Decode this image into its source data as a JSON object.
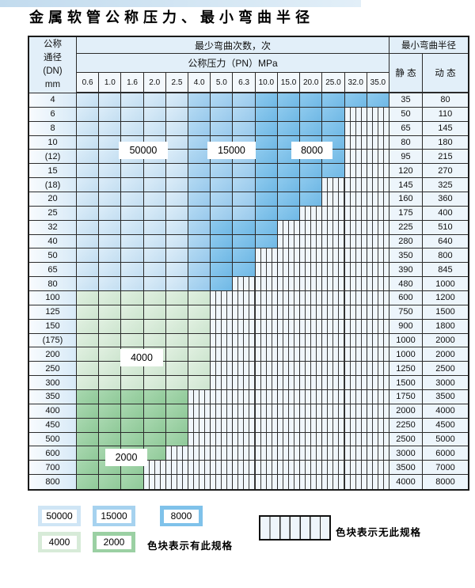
{
  "title": "金属软管公称压力、最小弯曲半径",
  "table": {
    "corner": [
      "公称",
      "通径",
      "(DN)",
      "mm"
    ],
    "headers": {
      "bend_cycles": "最少弯曲次数，次",
      "pressure": "公称压力（PN）MPa",
      "min_bend_radius": "最小弯曲半径",
      "static": "静 态",
      "dynamic": "动 态"
    },
    "pressure_ticks": [
      "0.6",
      "1.0",
      "1.6",
      "2.0",
      "2.5",
      "4.0",
      "5.0",
      "6.3",
      "10.0",
      "15.0",
      "20.0",
      "25.0",
      "32.0",
      "35.0"
    ],
    "cell_code_meaning": {
      "b1": "50000次",
      "b2": "15000次",
      "b3": "8000次",
      "g1": "4000次",
      "g2": "2000次",
      "x": "无此规格"
    },
    "rows": [
      {
        "dn": "4",
        "static": "35",
        "dynamic": "80",
        "cells": [
          "b1",
          "b1",
          "b1",
          "b1",
          "b1",
          "b2",
          "b2",
          "b2",
          "b3",
          "b3",
          "b3",
          "b3",
          "b3",
          "b3"
        ]
      },
      {
        "dn": "6",
        "static": "50",
        "dynamic": "110",
        "cells": [
          "b1",
          "b1",
          "b1",
          "b1",
          "b1",
          "b2",
          "b2",
          "b2",
          "b3",
          "b3",
          "b3",
          "b3",
          "x",
          "x"
        ]
      },
      {
        "dn": "8",
        "static": "65",
        "dynamic": "145",
        "cells": [
          "b1",
          "b1",
          "b1",
          "b1",
          "b1",
          "b2",
          "b2",
          "b2",
          "b3",
          "b3",
          "b3",
          "b3",
          "x",
          "x"
        ]
      },
      {
        "dn": "10",
        "static": "80",
        "dynamic": "180",
        "cells": [
          "b1",
          "b1",
          "b1",
          "b1",
          "b1",
          "b2",
          "b2",
          "b2",
          "b3",
          "b3",
          "b3",
          "b3",
          "x",
          "x"
        ]
      },
      {
        "dn": "(12)",
        "static": "95",
        "dynamic": "215",
        "cells": [
          "b1",
          "b1",
          "b1",
          "b1",
          "b1",
          "b2",
          "b2",
          "b2",
          "b3",
          "b3",
          "b3",
          "b3",
          "x",
          "x"
        ]
      },
      {
        "dn": "15",
        "static": "120",
        "dynamic": "270",
        "cells": [
          "b1",
          "b1",
          "b1",
          "b1",
          "b1",
          "b2",
          "b2",
          "b2",
          "b3",
          "b3",
          "b3",
          "b3",
          "x",
          "x"
        ]
      },
      {
        "dn": "(18)",
        "static": "145",
        "dynamic": "325",
        "cells": [
          "b1",
          "b1",
          "b1",
          "b1",
          "b1",
          "b2",
          "b2",
          "b2",
          "b3",
          "b3",
          "b3",
          "x",
          "x",
          "x"
        ]
      },
      {
        "dn": "20",
        "static": "160",
        "dynamic": "360",
        "cells": [
          "b1",
          "b1",
          "b1",
          "b1",
          "b1",
          "b2",
          "b2",
          "b2",
          "b3",
          "b3",
          "b3",
          "x",
          "x",
          "x"
        ]
      },
      {
        "dn": "25",
        "static": "175",
        "dynamic": "400",
        "cells": [
          "b1",
          "b1",
          "b1",
          "b1",
          "b1",
          "b2",
          "b2",
          "b2",
          "b3",
          "b3",
          "x",
          "x",
          "x",
          "x"
        ]
      },
      {
        "dn": "32",
        "static": "225",
        "dynamic": "510",
        "cells": [
          "b1",
          "b1",
          "b1",
          "b1",
          "b1",
          "b2",
          "b3",
          "b3",
          "b3",
          "x",
          "x",
          "x",
          "x",
          "x"
        ]
      },
      {
        "dn": "40",
        "static": "280",
        "dynamic": "640",
        "cells": [
          "b1",
          "b1",
          "b1",
          "b1",
          "b1",
          "b2",
          "b3",
          "b3",
          "b3",
          "x",
          "x",
          "x",
          "x",
          "x"
        ]
      },
      {
        "dn": "50",
        "static": "350",
        "dynamic": "800",
        "cells": [
          "b1",
          "b1",
          "b1",
          "b1",
          "b1",
          "b2",
          "b3",
          "b3",
          "x",
          "x",
          "x",
          "x",
          "x",
          "x"
        ]
      },
      {
        "dn": "65",
        "static": "390",
        "dynamic": "845",
        "cells": [
          "b1",
          "b1",
          "b1",
          "b1",
          "b1",
          "b2",
          "b3",
          "b3",
          "x",
          "x",
          "x",
          "x",
          "x",
          "x"
        ]
      },
      {
        "dn": "80",
        "static": "480",
        "dynamic": "1000",
        "cells": [
          "b1",
          "b1",
          "b1",
          "b1",
          "b1",
          "b2",
          "b3",
          "x",
          "x",
          "x",
          "x",
          "x",
          "x",
          "x"
        ]
      },
      {
        "dn": "100",
        "static": "600",
        "dynamic": "1200",
        "cells": [
          "g1",
          "g1",
          "g1",
          "g1",
          "g1",
          "g1",
          "x",
          "x",
          "x",
          "x",
          "x",
          "x",
          "x",
          "x"
        ]
      },
      {
        "dn": "125",
        "static": "750",
        "dynamic": "1500",
        "cells": [
          "g1",
          "g1",
          "g1",
          "g1",
          "g1",
          "g1",
          "x",
          "x",
          "x",
          "x",
          "x",
          "x",
          "x",
          "x"
        ]
      },
      {
        "dn": "150",
        "static": "900",
        "dynamic": "1800",
        "cells": [
          "g1",
          "g1",
          "g1",
          "g1",
          "g1",
          "g1",
          "x",
          "x",
          "x",
          "x",
          "x",
          "x",
          "x",
          "x"
        ]
      },
      {
        "dn": "(175)",
        "static": "1000",
        "dynamic": "2000",
        "cells": [
          "g1",
          "g1",
          "g1",
          "g1",
          "g1",
          "g1",
          "x",
          "x",
          "x",
          "x",
          "x",
          "x",
          "x",
          "x"
        ]
      },
      {
        "dn": "200",
        "static": "1000",
        "dynamic": "2000",
        "cells": [
          "g1",
          "g1",
          "g1",
          "g1",
          "g1",
          "g1",
          "x",
          "x",
          "x",
          "x",
          "x",
          "x",
          "x",
          "x"
        ]
      },
      {
        "dn": "250",
        "static": "1250",
        "dynamic": "2500",
        "cells": [
          "g1",
          "g1",
          "g1",
          "g1",
          "g1",
          "g1",
          "x",
          "x",
          "x",
          "x",
          "x",
          "x",
          "x",
          "x"
        ]
      },
      {
        "dn": "300",
        "static": "1500",
        "dynamic": "3000",
        "cells": [
          "g1",
          "g1",
          "g1",
          "g1",
          "g1",
          "g1",
          "x",
          "x",
          "x",
          "x",
          "x",
          "x",
          "x",
          "x"
        ]
      },
      {
        "dn": "350",
        "static": "1750",
        "dynamic": "3500",
        "cells": [
          "g2",
          "g2",
          "g2",
          "g2",
          "g2",
          "x",
          "x",
          "x",
          "x",
          "x",
          "x",
          "x",
          "x",
          "x"
        ]
      },
      {
        "dn": "400",
        "static": "2000",
        "dynamic": "4000",
        "cells": [
          "g2",
          "g2",
          "g2",
          "g2",
          "g2",
          "x",
          "x",
          "x",
          "x",
          "x",
          "x",
          "x",
          "x",
          "x"
        ]
      },
      {
        "dn": "450",
        "static": "2250",
        "dynamic": "4500",
        "cells": [
          "g2",
          "g2",
          "g2",
          "g2",
          "g2",
          "x",
          "x",
          "x",
          "x",
          "x",
          "x",
          "x",
          "x",
          "x"
        ]
      },
      {
        "dn": "500",
        "static": "2500",
        "dynamic": "5000",
        "cells": [
          "g2",
          "g2",
          "g2",
          "g2",
          "g2",
          "x",
          "x",
          "x",
          "x",
          "x",
          "x",
          "x",
          "x",
          "x"
        ]
      },
      {
        "dn": "600",
        "static": "3000",
        "dynamic": "6000",
        "cells": [
          "g2",
          "g2",
          "g2",
          "g2",
          "x",
          "x",
          "x",
          "x",
          "x",
          "x",
          "x",
          "x",
          "x",
          "x"
        ]
      },
      {
        "dn": "700",
        "static": "3500",
        "dynamic": "7000",
        "cells": [
          "g2",
          "g2",
          "g2",
          "x",
          "x",
          "x",
          "x",
          "x",
          "x",
          "x",
          "x",
          "x",
          "x",
          "x"
        ]
      },
      {
        "dn": "800",
        "static": "4000",
        "dynamic": "8000",
        "cells": [
          "g2",
          "g2",
          "g2",
          "x",
          "x",
          "x",
          "x",
          "x",
          "x",
          "x",
          "x",
          "x",
          "x",
          "x"
        ]
      }
    ]
  },
  "overlays": {
    "o50000": "50000",
    "o15000": "15000",
    "o8000": "8000",
    "o4000": "4000",
    "o2000": "2000"
  },
  "legend": {
    "boxes": [
      {
        "label": "50000"
      },
      {
        "label": "15000"
      },
      {
        "label": "8000"
      },
      {
        "label": "4000"
      },
      {
        "label": "2000"
      }
    ],
    "available_note": "色块表示有此规格",
    "unavailable_note": "色块表示无此规格"
  },
  "colors": {
    "c50000": "#cfe5f5",
    "c15000": "#a6d2ef",
    "c8000": "#7fc2ea",
    "c4000": "#d7ebd8",
    "c2000": "#9bd0a3",
    "grid": "#2b2b2b",
    "header_bg": "#e2eff9",
    "stripe_bg": "#f0f6fb"
  }
}
